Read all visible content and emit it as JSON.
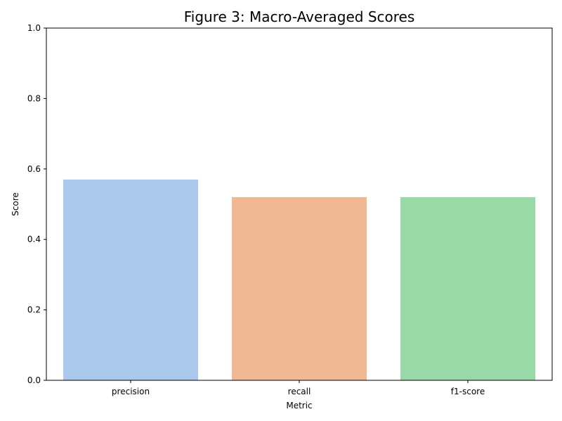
{
  "chart_data": {
    "type": "bar",
    "title": "Figure 3: Macro-Averaged Scores",
    "xlabel": "Metric",
    "ylabel": "Score",
    "categories": [
      "precision",
      "recall",
      "f1-score"
    ],
    "values": [
      0.57,
      0.52,
      0.52
    ],
    "ylim": [
      0,
      1
    ],
    "yticks": [
      "0.0",
      "0.2",
      "0.4",
      "0.6",
      "0.8",
      "1.0"
    ],
    "grid": false,
    "legend": "none",
    "colors": [
      "#abc9ed",
      "#f1b894",
      "#99d9a8"
    ]
  }
}
